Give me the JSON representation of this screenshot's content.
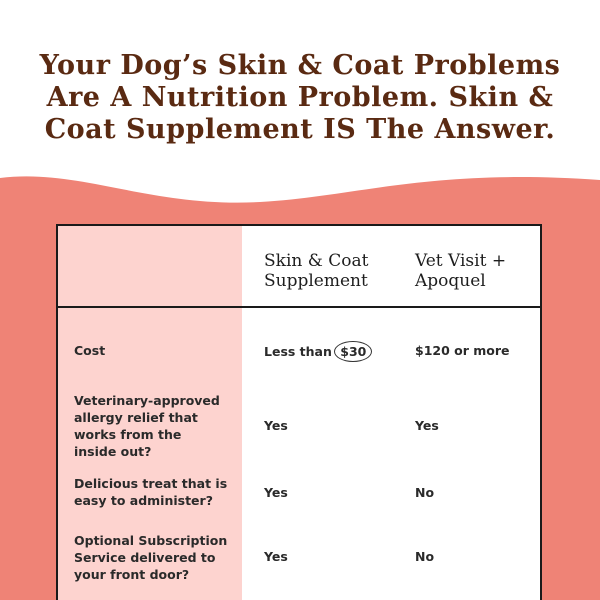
{
  "headline": {
    "line1": "Your Dog’s Skin & Coat Problems",
    "line2": "Are A Nutrition Problem. Skin &",
    "line3": "Coat Supplement IS The Answer."
  },
  "colors": {
    "headline": "#5a2a12",
    "wave": "#ef8376",
    "label_column": "#fdd3cf"
  },
  "table": {
    "columns": [
      {
        "line1": "Skin & Coat",
        "line2": "Supplement"
      },
      {
        "line1": "Vet Visit +",
        "line2": "Apoquel"
      }
    ],
    "rows": [
      {
        "label": [
          "Cost"
        ],
        "col1_prefix": "Less than",
        "col1_highlight": "$30",
        "col2": "$120 or more"
      },
      {
        "label": [
          "Veterinary-approved",
          "allergy relief that",
          "works from the",
          "inside out?"
        ],
        "col1": "Yes",
        "col2": "Yes"
      },
      {
        "label": [
          "Delicious treat that is",
          "easy to administer?"
        ],
        "col1": "Yes",
        "col2": "No"
      },
      {
        "label": [
          "Optional Subscription",
          "Service delivered to",
          "your front door?"
        ],
        "col1": "Yes",
        "col2": "No"
      }
    ]
  }
}
